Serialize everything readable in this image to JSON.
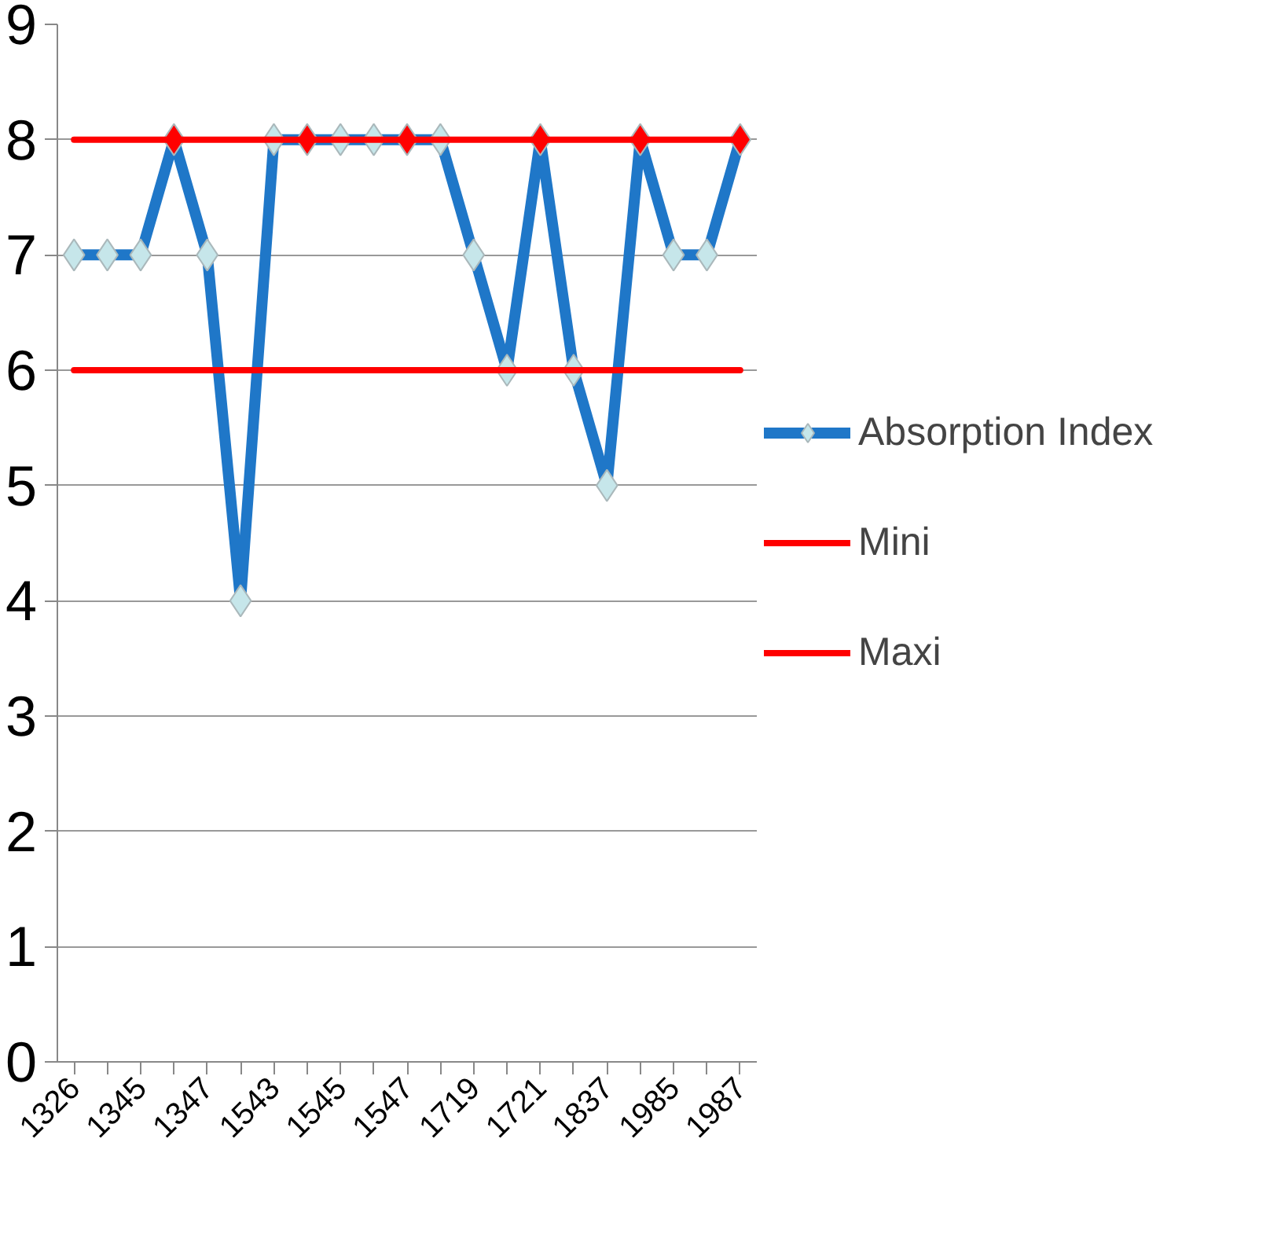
{
  "chart_data": {
    "type": "line",
    "categories": [
      "1326",
      null,
      "1345",
      null,
      "1347",
      null,
      "1543",
      null,
      "1545",
      null,
      "1547",
      null,
      "1719",
      null,
      "1721",
      null,
      "1837",
      null,
      "1985",
      null,
      "1987"
    ],
    "series": [
      {
        "name": "Absorption Index",
        "color": "#1f77c8",
        "marker": "diamond",
        "colors": [
          "#c6e6ea",
          "#c6e6ea",
          "#c6e6ea",
          "#ff0000",
          "#c6e6ea",
          "#c6e6ea",
          "#c6e6ea",
          "#ff0000",
          "#c6e6ea",
          "#c6e6ea",
          "#ff0000",
          "#c6e6ea",
          "#c6e6ea",
          "#c6e6ea",
          "#ff0000",
          "#c6e6ea",
          "#c6e6ea",
          "#ff0000",
          "#c6e6ea",
          "#c6e6ea",
          "#ff0000"
        ],
        "values": [
          7,
          7,
          7,
          8,
          7,
          4,
          8,
          8,
          8,
          8,
          8,
          8,
          7,
          6,
          8,
          6,
          5,
          8,
          7,
          7,
          8
        ]
      },
      {
        "name": "Mini",
        "color": "#ff0000",
        "values": [
          6,
          6,
          6,
          6,
          6,
          6,
          6,
          6,
          6,
          6,
          6,
          6,
          6,
          6,
          6,
          6,
          6,
          6,
          6,
          6,
          6
        ]
      },
      {
        "name": "Maxi",
        "color": "#ff0000",
        "values": [
          8,
          8,
          8,
          8,
          8,
          8,
          8,
          8,
          8,
          8,
          8,
          8,
          8,
          8,
          8,
          8,
          8,
          8,
          8,
          8,
          8
        ]
      }
    ],
    "ylim": [
      0,
      9
    ],
    "yticks": [
      0,
      1,
      2,
      3,
      4,
      5,
      6,
      7,
      8,
      9
    ],
    "grid": "y",
    "legend": "right"
  }
}
